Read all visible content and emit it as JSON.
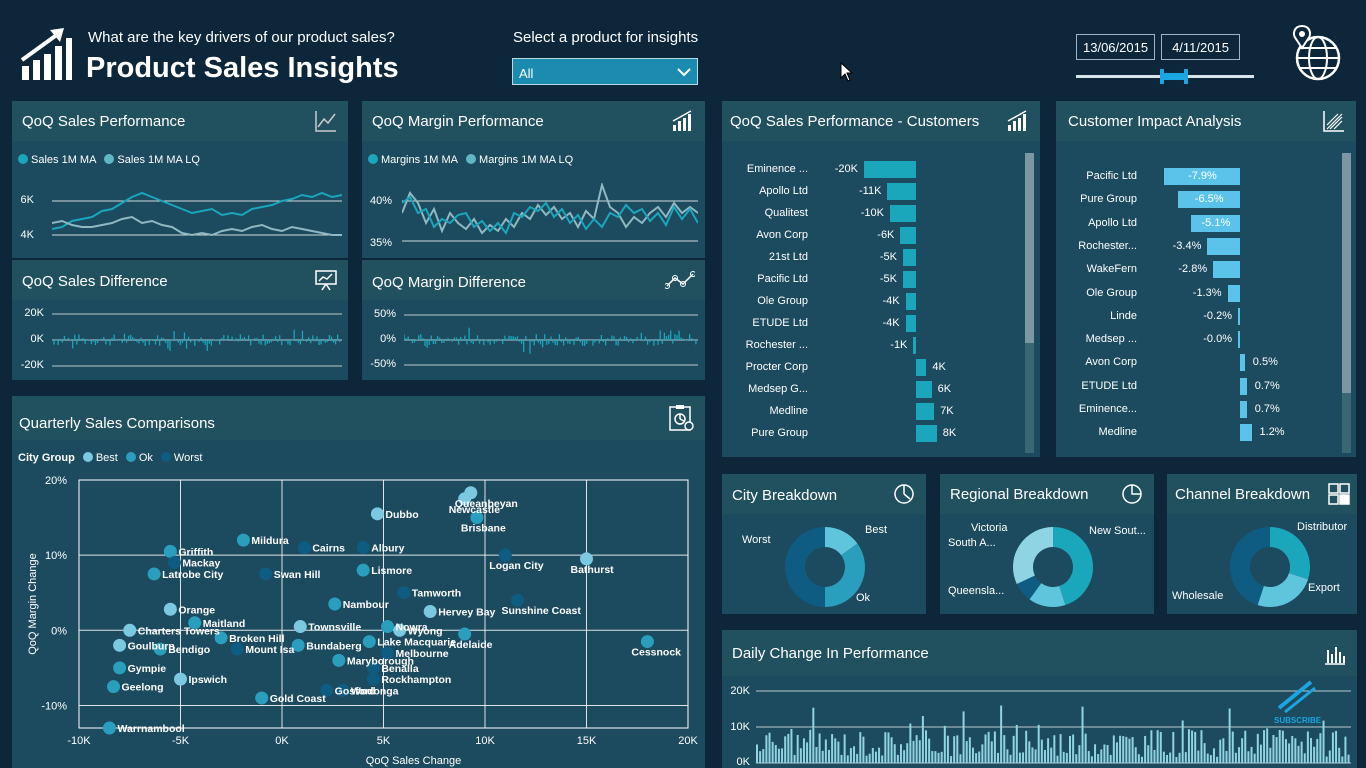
{
  "header": {
    "subtitle": "What are the key drivers of our product sales?",
    "title": "Product Sales Insights",
    "product_selector_label": "Select a product for insights",
    "product_selector_value": "All",
    "date_start": "13/06/2015",
    "date_end": "4/11/2015",
    "logo_icon": "growth-chart-icon",
    "globe_icon": "globe-location-icon"
  },
  "panels": {
    "qoq_sales_perf": {
      "title": "QoQ Sales Performance",
      "legend": [
        "Sales 1M MA",
        "Sales 1M MA LQ"
      ],
      "y_ticks": [
        "6K",
        "4K"
      ],
      "icon": "line-chart-icon"
    },
    "qoq_margin_perf": {
      "title": "QoQ Margin Performance",
      "legend": [
        "Margins 1M MA",
        "Margins 1M MA LQ"
      ],
      "y_ticks": [
        "40%",
        "35%"
      ],
      "icon": "bar-trend-icon"
    },
    "qoq_sales_diff": {
      "title": "QoQ Sales Difference",
      "y_ticks": [
        "20K",
        "0K",
        "-20K"
      ],
      "icon": "presentation-chart-icon"
    },
    "qoq_margin_diff": {
      "title": "QoQ Margin Difference",
      "y_ticks": [
        "50%",
        "0%",
        "-50%"
      ],
      "icon": "nodes-line-icon"
    },
    "customers": {
      "title": "QoQ Sales Performance - Customers",
      "icon": "bar-trend-icon",
      "rows": [
        {
          "name": "Eminence ...",
          "label": "-20K",
          "value": -20
        },
        {
          "name": "Apollo Ltd",
          "label": "-11K",
          "value": -11
        },
        {
          "name": "Qualitest",
          "label": "-10K",
          "value": -10
        },
        {
          "name": "Avon Corp",
          "label": "-6K",
          "value": -6
        },
        {
          "name": "21st Ltd",
          "label": "-5K",
          "value": -5
        },
        {
          "name": "Pacific Ltd",
          "label": "-5K",
          "value": -5
        },
        {
          "name": "Ole Group",
          "label": "-4K",
          "value": -4
        },
        {
          "name": "ETUDE Ltd",
          "label": "-4K",
          "value": -4
        },
        {
          "name": "Rochester ...",
          "label": "-1K",
          "value": -1
        },
        {
          "name": "Procter Corp",
          "label": "4K",
          "value": 4
        },
        {
          "name": "Medsep G...",
          "label": "6K",
          "value": 6
        },
        {
          "name": "Medline",
          "label": "7K",
          "value": 7
        },
        {
          "name": "Pure Group",
          "label": "8K",
          "value": 8
        }
      ]
    },
    "impact": {
      "title": "Customer Impact Analysis",
      "icon": "hatched-chart-icon",
      "rows": [
        {
          "name": "Pacific Ltd",
          "label": "-7.9%",
          "value": -7.9
        },
        {
          "name": "Pure Group",
          "label": "-6.5%",
          "value": -6.5
        },
        {
          "name": "Apollo Ltd",
          "label": "-5.1%",
          "value": -5.1
        },
        {
          "name": "Rochester...",
          "label": "-3.4%",
          "value": -3.4
        },
        {
          "name": "WakeFern",
          "label": "-2.8%",
          "value": -2.8
        },
        {
          "name": "Ole Group",
          "label": "-1.3%",
          "value": -1.3
        },
        {
          "name": "Linde",
          "label": "-0.2%",
          "value": -0.2
        },
        {
          "name": "Medsep ...",
          "label": "-0.0%",
          "value": -0.05
        },
        {
          "name": "Avon Corp",
          "label": "0.5%",
          "value": 0.5
        },
        {
          "name": "ETUDE Ltd",
          "label": "0.7%",
          "value": 0.7
        },
        {
          "name": "Eminence...",
          "label": "0.7%",
          "value": 0.7
        },
        {
          "name": "Medline",
          "label": "1.2%",
          "value": 1.2
        }
      ]
    },
    "quarterly": {
      "title": "Quarterly Sales Comparisons",
      "legend_title": "City Group",
      "legend": [
        "Best",
        "Ok",
        "Worst"
      ],
      "icon": "clipboard-chart-icon"
    },
    "city": {
      "title": "City Breakdown",
      "icon": "pie-clock-icon",
      "labels": [
        "Worst",
        "Best",
        "Ok"
      ]
    },
    "regional": {
      "title": "Regional Breakdown",
      "icon": "pie-icon",
      "labels": [
        "Victoria",
        "South A...",
        "New Sout...",
        "Queensla..."
      ]
    },
    "channel": {
      "title": "Channel Breakdown",
      "icon": "puzzle-icon",
      "labels": [
        "Distributor",
        "Wholesale",
        "Export"
      ]
    },
    "daily": {
      "title": "Daily Change In Performance",
      "icon": "bar-chart-icon",
      "y_ticks": [
        "20K",
        "10K",
        "0K"
      ],
      "watermark": "SUBSCRIBE"
    }
  },
  "colors": {
    "best": "#7cc8e0",
    "ok": "#2a9fbd",
    "worst": "#0f5c83",
    "line1": "#1aa6bb",
    "line2": "#8fb8c3"
  },
  "chart_data": [
    {
      "type": "scatter",
      "title": "Quarterly Sales Comparisons",
      "xlabel": "QoQ Sales Change",
      "ylabel": "QoQ Margin Change",
      "x_ticks": [
        "-10K",
        "-5K",
        "0K",
        "5K",
        "10K",
        "15K",
        "20K"
      ],
      "y_ticks": [
        "20%",
        "10%",
        "0%",
        "-10%"
      ],
      "xlim": [
        -10,
        20
      ],
      "ylim": [
        -13,
        20
      ],
      "points": [
        {
          "name": "Queanbeyan",
          "x": 9.3,
          "y": 18.3,
          "group": "Best"
        },
        {
          "name": "Newcastle",
          "x": 9.0,
          "y": 17.5,
          "group": "Best"
        },
        {
          "name": "Brisbane",
          "x": 9.6,
          "y": 15.0,
          "group": "Ok"
        },
        {
          "name": "Dubbo",
          "x": 4.7,
          "y": 15.5,
          "group": "Best"
        },
        {
          "name": "Albury",
          "x": 4.0,
          "y": 11.0,
          "group": "Worst"
        },
        {
          "name": "Griffith",
          "x": -5.5,
          "y": 10.5,
          "group": "Ok"
        },
        {
          "name": "Mildura",
          "x": -1.9,
          "y": 12.0,
          "group": "Ok"
        },
        {
          "name": "Cairns",
          "x": 1.1,
          "y": 11.0,
          "group": "Worst"
        },
        {
          "name": "Mackay",
          "x": -5.3,
          "y": 9.0,
          "group": "Worst"
        },
        {
          "name": "Logan City",
          "x": 11.0,
          "y": 10.0,
          "group": "Worst"
        },
        {
          "name": "Bathurst",
          "x": 15.0,
          "y": 9.5,
          "group": "Best"
        },
        {
          "name": "Latrobe City",
          "x": -6.3,
          "y": 7.5,
          "group": "Ok"
        },
        {
          "name": "Swan Hill",
          "x": -0.8,
          "y": 7.5,
          "group": "Worst"
        },
        {
          "name": "Lismore",
          "x": 4.0,
          "y": 8.0,
          "group": "Ok"
        },
        {
          "name": "Orange",
          "x": -5.5,
          "y": 2.8,
          "group": "Best"
        },
        {
          "name": "Maitland",
          "x": -4.3,
          "y": 1.0,
          "group": "Ok"
        },
        {
          "name": "Tamworth",
          "x": 6.0,
          "y": 5.0,
          "group": "Worst"
        },
        {
          "name": "Hervey Bay",
          "x": 7.3,
          "y": 2.5,
          "group": "Best"
        },
        {
          "name": "Sunshine Coast",
          "x": 11.6,
          "y": 4.0,
          "group": "Worst"
        },
        {
          "name": "Nambour",
          "x": 2.6,
          "y": 3.5,
          "group": "Ok"
        },
        {
          "name": "Charters Towers",
          "x": -7.5,
          "y": 0.0,
          "group": "Best"
        },
        {
          "name": "Nowra",
          "x": 5.2,
          "y": 0.5,
          "group": "Ok"
        },
        {
          "name": "Wyong",
          "x": 5.8,
          "y": 0.0,
          "group": "Best"
        },
        {
          "name": "Townsville",
          "x": 0.9,
          "y": 0.5,
          "group": "Best"
        },
        {
          "name": "Broken Hill",
          "x": -3.0,
          "y": -1.0,
          "group": "Ok"
        },
        {
          "name": "Lake Macquarie",
          "x": 4.3,
          "y": -1.5,
          "group": "Ok"
        },
        {
          "name": "Adelaide",
          "x": 9.0,
          "y": -0.5,
          "group": "Ok"
        },
        {
          "name": "Goulburn",
          "x": -8.0,
          "y": -2.0,
          "group": "Best"
        },
        {
          "name": "Bundaberg",
          "x": 0.8,
          "y": -2.0,
          "group": "Ok"
        },
        {
          "name": "Melbourne",
          "x": 5.2,
          "y": -3.0,
          "group": "Worst"
        },
        {
          "name": "Cessnock",
          "x": 18.0,
          "y": -1.5,
          "group": "Ok"
        },
        {
          "name": "Bendigo",
          "x": -6.0,
          "y": -2.5,
          "group": "Ok"
        },
        {
          "name": "Mount Isa",
          "x": -2.2,
          "y": -2.5,
          "group": "Worst"
        },
        {
          "name": "Maryborough",
          "x": 2.8,
          "y": -4.0,
          "group": "Ok"
        },
        {
          "name": "Benalla",
          "x": 4.5,
          "y": -5.0,
          "group": "Worst"
        },
        {
          "name": "Gympie",
          "x": -8.0,
          "y": -5.0,
          "group": "Ok"
        },
        {
          "name": "Ipswich",
          "x": -5.0,
          "y": -6.5,
          "group": "Best"
        },
        {
          "name": "Rockhampton",
          "x": 4.5,
          "y": -6.5,
          "group": "Worst"
        },
        {
          "name": "Geelong",
          "x": -8.3,
          "y": -7.5,
          "group": "Ok"
        },
        {
          "name": "Gosford",
          "x": 2.2,
          "y": -8.0,
          "group": "Worst"
        },
        {
          "name": "Wodonga",
          "x": 3.0,
          "y": -8.0,
          "group": "Worst"
        },
        {
          "name": "Gold Coast",
          "x": -1.0,
          "y": -9.0,
          "group": "Ok"
        },
        {
          "name": "Warrnambool",
          "x": -8.5,
          "y": -13.0,
          "group": "Ok"
        }
      ]
    },
    {
      "type": "donut",
      "title": "City Breakdown",
      "categories": [
        "Best",
        "Ok",
        "Worst"
      ],
      "values": [
        15,
        35,
        50
      ]
    },
    {
      "type": "donut",
      "title": "Regional Breakdown",
      "categories": [
        "New Sout...",
        "Victoria",
        "South A...",
        "Queensla..."
      ],
      "values": [
        45,
        15,
        8,
        32
      ]
    },
    {
      "type": "donut",
      "title": "Channel Breakdown",
      "categories": [
        "Distributor",
        "Export",
        "Wholesale"
      ],
      "values": [
        30,
        25,
        45
      ]
    }
  ]
}
